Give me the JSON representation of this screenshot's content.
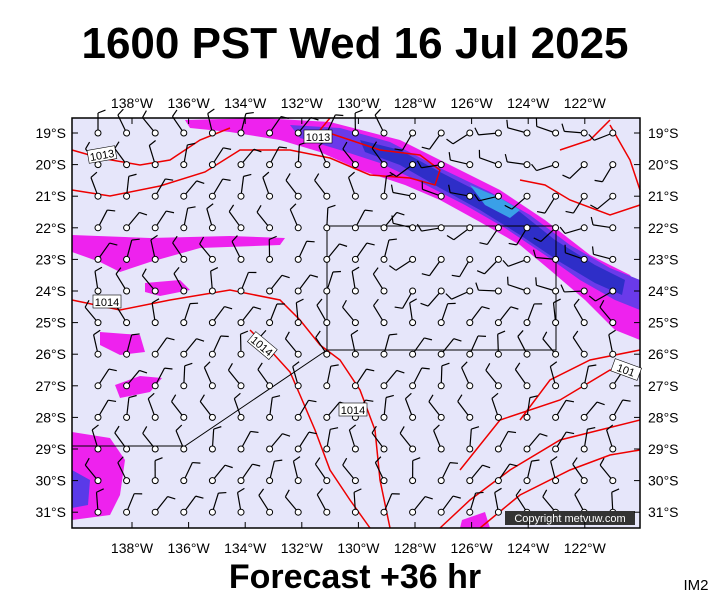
{
  "header": {
    "title": "1600 PST Wed 16 Jul 2025"
  },
  "map": {
    "lon_labels": [
      "138°W",
      "136°W",
      "134°W",
      "132°W",
      "130°W",
      "128°W",
      "126°W",
      "124°W",
      "122°W"
    ],
    "lat_labels": [
      "19°S",
      "20°S",
      "21°S",
      "22°S",
      "23°S",
      "24°S",
      "25°S",
      "26°S",
      "27°S",
      "28°S",
      "29°S",
      "30°S",
      "31°S"
    ],
    "isobar_labels": [
      "1013",
      "1013",
      "1014",
      "1014",
      "1014",
      "101"
    ],
    "copyright": "Copyright metvuw.com"
  },
  "footer": {
    "forecast": "Forecast +36 hr",
    "id": "IM2"
  }
}
